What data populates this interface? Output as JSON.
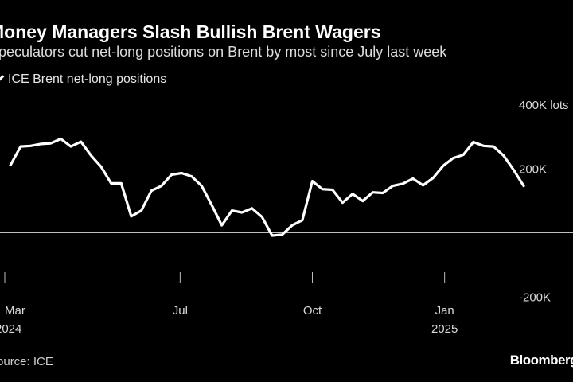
{
  "header": {
    "title": "Money Managers Slash Bullish Brent Wagers",
    "subtitle": "Speculators cut net-long positions on Brent by most since July last week"
  },
  "legend": {
    "label": "ICE Brent net-long positions"
  },
  "footer": {
    "source": "Source: ICE",
    "brand": "Bloomberg"
  },
  "colors": {
    "background": "#000000",
    "line": "#ffffff",
    "zero_line": "#ffffff"
  },
  "chart_data": {
    "type": "line",
    "title": "Money Managers Slash Bullish Brent Wagers",
    "subtitle": "Speculators cut net-long positions on Brent by most since July last week",
    "xlabel": "",
    "ylabel": "",
    "ylim": [
      -260000,
      400000
    ],
    "grid": false,
    "legend_position": "top-left",
    "y_ticks": [
      {
        "value": 400000,
        "label": "400K lots"
      },
      {
        "value": 200000,
        "label": "200K"
      },
      {
        "value": -200000,
        "label": "-200K"
      }
    ],
    "x_ticks": [
      {
        "date": "2024-03-01",
        "label": "Mar",
        "sublabel": "2024"
      },
      {
        "date": "2024-07-01",
        "label": "Jul",
        "sublabel": ""
      },
      {
        "date": "2024-10-01",
        "label": "Oct",
        "sublabel": ""
      },
      {
        "date": "2025-01-01",
        "label": "Jan",
        "sublabel": "2025"
      }
    ],
    "x_range": [
      "2024-03-01",
      "2025-02-25"
    ],
    "series": [
      {
        "name": "ICE Brent net-long positions",
        "x": [
          "2024-03-05",
          "2024-03-12",
          "2024-03-19",
          "2024-03-26",
          "2024-04-02",
          "2024-04-09",
          "2024-04-16",
          "2024-04-23",
          "2024-04-30",
          "2024-05-07",
          "2024-05-14",
          "2024-05-21",
          "2024-05-28",
          "2024-06-04",
          "2024-06-11",
          "2024-06-18",
          "2024-06-25",
          "2024-07-02",
          "2024-07-09",
          "2024-07-16",
          "2024-07-23",
          "2024-07-30",
          "2024-08-06",
          "2024-08-13",
          "2024-08-20",
          "2024-08-27",
          "2024-09-03",
          "2024-09-10",
          "2024-09-17",
          "2024-09-24",
          "2024-10-01",
          "2024-10-08",
          "2024-10-15",
          "2024-10-22",
          "2024-10-29",
          "2024-11-05",
          "2024-11-12",
          "2024-11-19",
          "2024-11-26",
          "2024-12-03",
          "2024-12-10",
          "2024-12-17",
          "2024-12-24",
          "2024-12-31",
          "2025-01-07",
          "2025-01-14",
          "2025-01-21",
          "2025-01-28",
          "2025-02-04",
          "2025-02-11",
          "2025-02-18",
          "2025-02-25"
        ],
        "values": [
          210000,
          268000,
          270000,
          276000,
          278000,
          292000,
          268000,
          283000,
          240000,
          205000,
          153000,
          153000,
          50000,
          68000,
          130000,
          145000,
          180000,
          185000,
          175000,
          145000,
          85000,
          22000,
          68000,
          62000,
          75000,
          48000,
          -10000,
          -7000,
          22000,
          38000,
          160000,
          135000,
          133000,
          93000,
          120000,
          98000,
          125000,
          123000,
          145000,
          152000,
          168000,
          147000,
          170000,
          208000,
          232000,
          242000,
          282000,
          270000,
          268000,
          240000,
          195000,
          145000
        ]
      }
    ]
  }
}
